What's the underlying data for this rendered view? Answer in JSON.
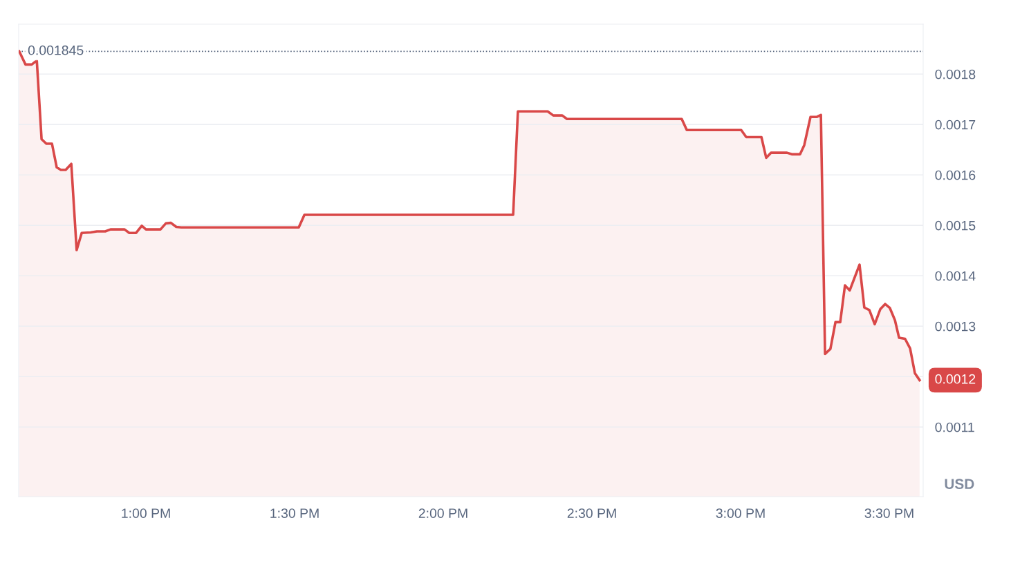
{
  "chart_data": {
    "type": "area",
    "x": [
      12.574,
      12.595,
      12.616,
      12.633,
      12.649,
      12.665,
      12.684,
      12.7,
      12.714,
      12.73,
      12.749,
      12.767,
      12.784,
      12.814,
      12.835,
      12.863,
      12.881,
      12.928,
      12.944,
      12.967,
      12.986,
      13.0,
      13.049,
      13.067,
      13.084,
      13.102,
      13.119,
      13.514,
      13.533,
      14.235,
      14.251,
      14.351,
      14.37,
      14.4,
      14.416,
      14.802,
      14.819,
      15.002,
      15.019,
      15.07,
      15.086,
      15.102,
      15.156,
      15.172,
      15.2,
      15.214,
      15.235,
      15.256,
      15.27,
      15.284,
      15.302,
      15.319,
      15.335,
      15.351,
      15.367,
      15.4,
      15.416,
      15.433,
      15.451,
      15.47,
      15.486,
      15.502,
      15.519,
      15.533,
      15.553,
      15.57,
      15.586,
      15.602
    ],
    "series": [
      {
        "color": "#d94848",
        "values": [
          0.001845,
          0.001819,
          0.001819,
          0.001827,
          0.001671,
          0.001662,
          0.001662,
          0.001615,
          0.00161,
          0.00161,
          0.001622,
          0.001451,
          0.001485,
          0.001486,
          0.001488,
          0.001488,
          0.001492,
          0.001492,
          0.001485,
          0.001485,
          0.001499,
          0.001492,
          0.001492,
          0.001504,
          0.001505,
          0.001497,
          0.001496,
          0.001496,
          0.001521,
          0.001521,
          0.001726,
          0.001726,
          0.001718,
          0.001718,
          0.001711,
          0.001711,
          0.001689,
          0.001689,
          0.001675,
          0.001675,
          0.001634,
          0.001644,
          0.001644,
          0.001641,
          0.001641,
          0.001659,
          0.001715,
          0.001715,
          0.001719,
          0.001245,
          0.001255,
          0.001308,
          0.001308,
          0.001381,
          0.001371,
          0.001422,
          0.001337,
          0.001332,
          0.001304,
          0.001334,
          0.001344,
          0.001336,
          0.001312,
          0.001277,
          0.001275,
          0.001256,
          0.001207,
          0.001193
        ]
      }
    ],
    "xlim": [
      12.572,
      15.614
    ],
    "ylim": [
      0.000962,
      0.001899
    ],
    "xticks": [
      {
        "value": 13,
        "label": "1:00 PM"
      },
      {
        "value": 13.5,
        "label": "1:30 PM"
      },
      {
        "value": 14,
        "label": "2:00 PM"
      },
      {
        "value": 14.5,
        "label": "2:30 PM"
      },
      {
        "value": 15,
        "label": "3:00 PM"
      },
      {
        "value": 15.5,
        "label": "3:30 PM"
      }
    ],
    "yticks": [
      0.0011,
      0.0012,
      0.0013,
      0.0014,
      0.0015,
      0.0016,
      0.0017,
      0.0018
    ],
    "grid": "y",
    "ref_lines": [
      {
        "axis": "y",
        "value": 0.001845,
        "label": "0.001845",
        "color": "#58667e",
        "line_style": "dotted"
      }
    ],
    "annotations": [
      "0.0012",
      "USD"
    ]
  }
}
